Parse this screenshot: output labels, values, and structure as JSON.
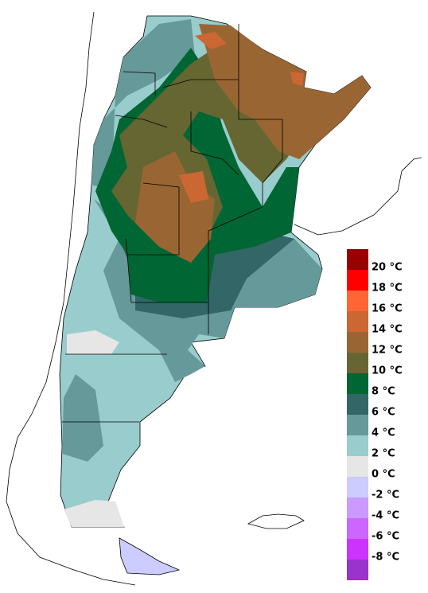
{
  "legend": {
    "labels": [
      "20 °C",
      "18 °C",
      "16 °C",
      "14 °C",
      "12 °C",
      "10 °C",
      "8 °C",
      "6 °C",
      "4 °C",
      "2 °C",
      "0 °C",
      "-2 °C",
      "-4 °C",
      "-6 °C",
      "-8 °C"
    ],
    "colors": [
      "#990000",
      "#ff0000",
      "#ff6633",
      "#cc6633",
      "#996633",
      "#666633",
      "#006633",
      "#336666",
      "#669999",
      "#99cccc",
      "#e6e6e6",
      "#ccccff",
      "#cc99ff",
      "#cc66ff",
      "#cc33ff",
      "#9933cc"
    ]
  }
}
